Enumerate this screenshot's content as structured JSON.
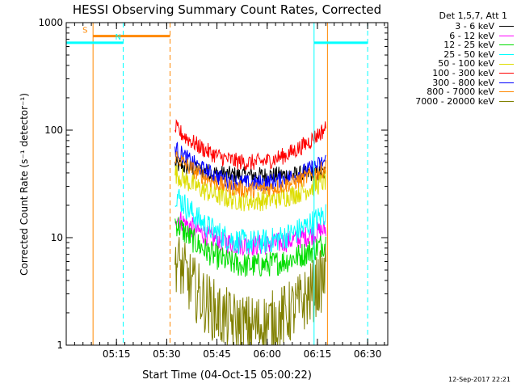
{
  "chart_data": {
    "type": "line",
    "title": "HESSI Observing Summary Count Rates, Corrected",
    "xlabel": "Start Time (04-Oct-15 05:00:22)",
    "ylabel": "Corrected Count Rate (s⁻¹ detector⁻¹)",
    "yscale": "log",
    "ylim": [
      1,
      1000
    ],
    "xlim_minutes": [
      0,
      96
    ],
    "x_ticks": [
      "05:15",
      "05:30",
      "05:45",
      "06:00",
      "06:15",
      "06:30"
    ],
    "x_tick_minutes": [
      15,
      30,
      45,
      60,
      75,
      90
    ],
    "y_ticks": [
      "1",
      "10",
      "100",
      "1000"
    ],
    "y_tick_values": [
      1,
      10,
      100,
      1000
    ],
    "legend_header": "Det 1,5,7, Att 1",
    "legend_position": "right",
    "series": [
      {
        "name": "3 - 6 keV",
        "color": "#000000",
        "start": 48,
        "end": 40,
        "min": 38,
        "jitter": 0.08
      },
      {
        "name": "6 - 12 keV",
        "color": "#ff00ff",
        "start": 16,
        "end": 12,
        "min": 8.5,
        "jitter": 0.1
      },
      {
        "name": "12 - 25 keV",
        "color": "#00dd00",
        "start": 14,
        "end": 9,
        "min": 5.5,
        "jitter": 0.12
      },
      {
        "name": "25 - 50 keV",
        "color": "#00ffff",
        "start": 26,
        "end": 17,
        "min": 9,
        "jitter": 0.12
      },
      {
        "name": "50 - 100 keV",
        "color": "#dddd00",
        "start": 40,
        "end": 34,
        "min": 22,
        "jitter": 0.1
      },
      {
        "name": "100 - 300 keV",
        "color": "#ff0000",
        "start": 105,
        "end": 105,
        "min": 50,
        "jitter": 0.08
      },
      {
        "name": "300 - 800 keV",
        "color": "#0000ff",
        "start": 68,
        "end": 52,
        "min": 32,
        "jitter": 0.08
      },
      {
        "name": "800 - 7000 keV",
        "color": "#ff8800",
        "start": 58,
        "end": 45,
        "min": 28,
        "jitter": 0.08
      },
      {
        "name": "7000 - 20000 keV",
        "color": "#808000",
        "start": 6.5,
        "end": 4.5,
        "min": 1.5,
        "jitter": 0.3
      }
    ],
    "data_interval_minutes": [
      32.5,
      77.5
    ],
    "flags": [
      {
        "label": "S",
        "color": "#ff8800",
        "start_min": 8,
        "end_min": 31,
        "value": 750
      },
      {
        "label": "N",
        "color": "#00ffff",
        "start_min": 0,
        "end_min": 17,
        "value": 650
      },
      {
        "label": "",
        "color": "#00ffff",
        "start_min": 74,
        "end_min": 90,
        "value": 650
      }
    ],
    "vlines": [
      {
        "minute": 0,
        "color": "#00ffff",
        "style": "solid"
      },
      {
        "minute": 8,
        "color": "#ff8800",
        "style": "solid"
      },
      {
        "minute": 17,
        "color": "#00ffff",
        "style": "dashed"
      },
      {
        "minute": 31,
        "color": "#ff8800",
        "style": "dashed"
      },
      {
        "minute": 74,
        "color": "#00ffff",
        "style": "solid"
      },
      {
        "minute": 78,
        "color": "#ff8800",
        "style": "solid"
      },
      {
        "minute": 90,
        "color": "#00ffff",
        "style": "dashed"
      }
    ]
  },
  "timestamp": "12-Sep-2017 22:21"
}
